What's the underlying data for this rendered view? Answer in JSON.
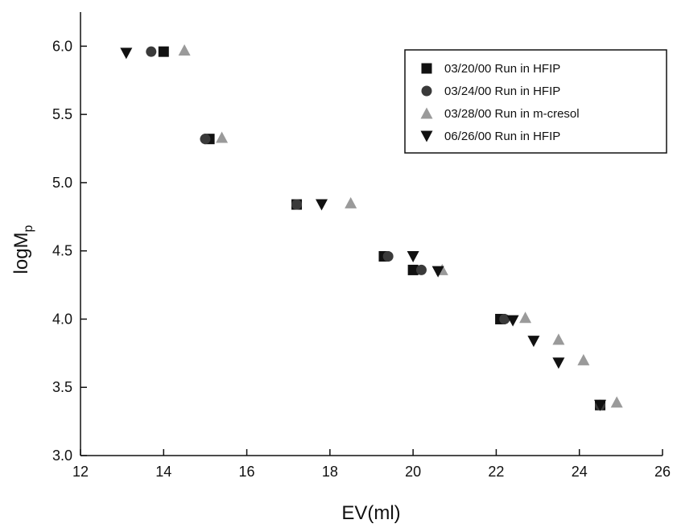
{
  "chart_data": {
    "type": "scatter",
    "x_label": "EV(ml)",
    "y_label": "logM",
    "y_label_subscript": "p",
    "xlim": [
      12,
      26
    ],
    "xticks": [
      12,
      14,
      16,
      18,
      20,
      22,
      24,
      26
    ],
    "ylim": [
      3.0,
      6.25
    ],
    "yticks": [
      {
        "value": 3.0,
        "label": "3.0"
      },
      {
        "value": 3.5,
        "label": "3.5"
      },
      {
        "value": 4.0,
        "label": "4.0"
      },
      {
        "value": 4.5,
        "label": "4.5"
      },
      {
        "value": 5.0,
        "label": "5.0"
      },
      {
        "value": 5.5,
        "label": "5.5"
      },
      {
        "value": 6.0,
        "label": "6.0"
      }
    ],
    "legend": "upper right",
    "series": [
      {
        "name": "03/20/00 Run in HFIP",
        "marker": "square",
        "color": "#111111",
        "x": [
          14.0,
          15.1,
          17.2,
          19.3,
          20.0,
          22.1,
          24.5
        ],
        "values": [
          5.96,
          5.32,
          4.84,
          4.46,
          4.36,
          4.0,
          3.37
        ]
      },
      {
        "name": "03/24/00 Run in HFIP",
        "marker": "circle",
        "color": "#3a3a3a",
        "x": [
          13.7,
          15.0,
          17.2,
          19.4,
          20.2,
          22.2,
          24.5
        ],
        "values": [
          5.96,
          5.32,
          4.84,
          4.46,
          4.36,
          4.0,
          3.37
        ]
      },
      {
        "name": "03/28/00 Run in m-cresol",
        "marker": "triangle-up",
        "color": "#9a9a9a",
        "x": [
          14.5,
          15.4,
          18.5,
          20.7,
          22.7,
          23.5,
          24.1,
          24.9
        ],
        "values": [
          5.97,
          5.33,
          4.85,
          4.36,
          4.01,
          3.85,
          3.7,
          3.39
        ]
      },
      {
        "name": "06/26/00 Run in HFIP",
        "marker": "triangle-down",
        "color": "#111111",
        "x": [
          13.1,
          17.8,
          20.0,
          20.6,
          22.4,
          22.9,
          23.5,
          24.5
        ],
        "values": [
          5.95,
          4.84,
          4.46,
          4.35,
          3.99,
          3.84,
          3.68,
          3.37
        ]
      }
    ]
  }
}
